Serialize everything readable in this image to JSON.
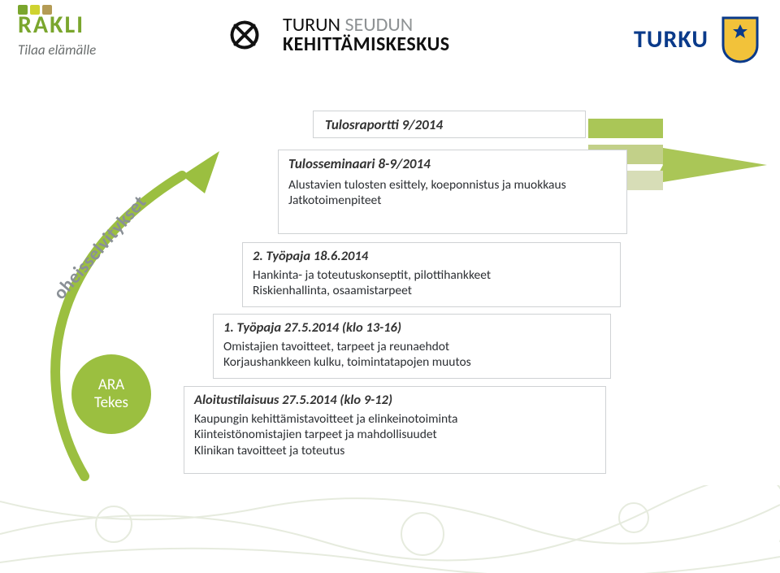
{
  "header": {
    "rakli": {
      "name": "RAKLI",
      "tagline": "Tilaa elämälle",
      "icon_colors": [
        "#7aa62d",
        "#cfd330",
        "#b49b55"
      ]
    },
    "tsk": {
      "line1_a": "TURUN ",
      "line1_b": "SEUDUN",
      "line2": "KEHITTÄMISKESKUS"
    },
    "turku": {
      "name": "TURKU",
      "color": "#0a3a8a",
      "crest_bg": "#f2c23a",
      "crest_border": "#0a3a8a"
    }
  },
  "arrow": {
    "arrow_fill": "#aac657",
    "bar_colors": [
      "#aac657",
      "#c2d089",
      "#d7ddb7"
    ]
  },
  "boxes": {
    "b5": {
      "title": "Tulosraportti 9/2014"
    },
    "b4": {
      "title": "Tulosseminaari 8-9/2014",
      "body": "Alustavien tulosten esittely, koeponnistus ja muokkaus\nJatkotoimenpiteet"
    },
    "b3": {
      "title": "2. Työpaja  18.6.2014",
      "body": "Hankinta- ja toteutuskonseptit, pilottihankkeet\nRiskienhallinta, osaamistarpeet"
    },
    "b2": {
      "title": "1. Työpaja  27.5.2014 (klo 13-16)",
      "body": "Omistajien tavoitteet, tarpeet ja reunaehdot\nKorjaushankkeen kulku, toimintatapojen muutos"
    },
    "b1": {
      "title": "Aloitustilaisuus 27.5.2014  (klo 9-12)",
      "body": "Kaupungin kehittämistavoitteet ja elinkeinotoiminta\nKiinteistönomistajien tarpeet ja mahdollisuudet\nKlinikan tavoitteet ja toteutus"
    }
  },
  "curve": {
    "stroke": "#9bbf40",
    "label": "oheisselvitykset"
  },
  "circle": {
    "line1": "ARA",
    "line2": "Tekes",
    "fill": "#9bbf40"
  }
}
